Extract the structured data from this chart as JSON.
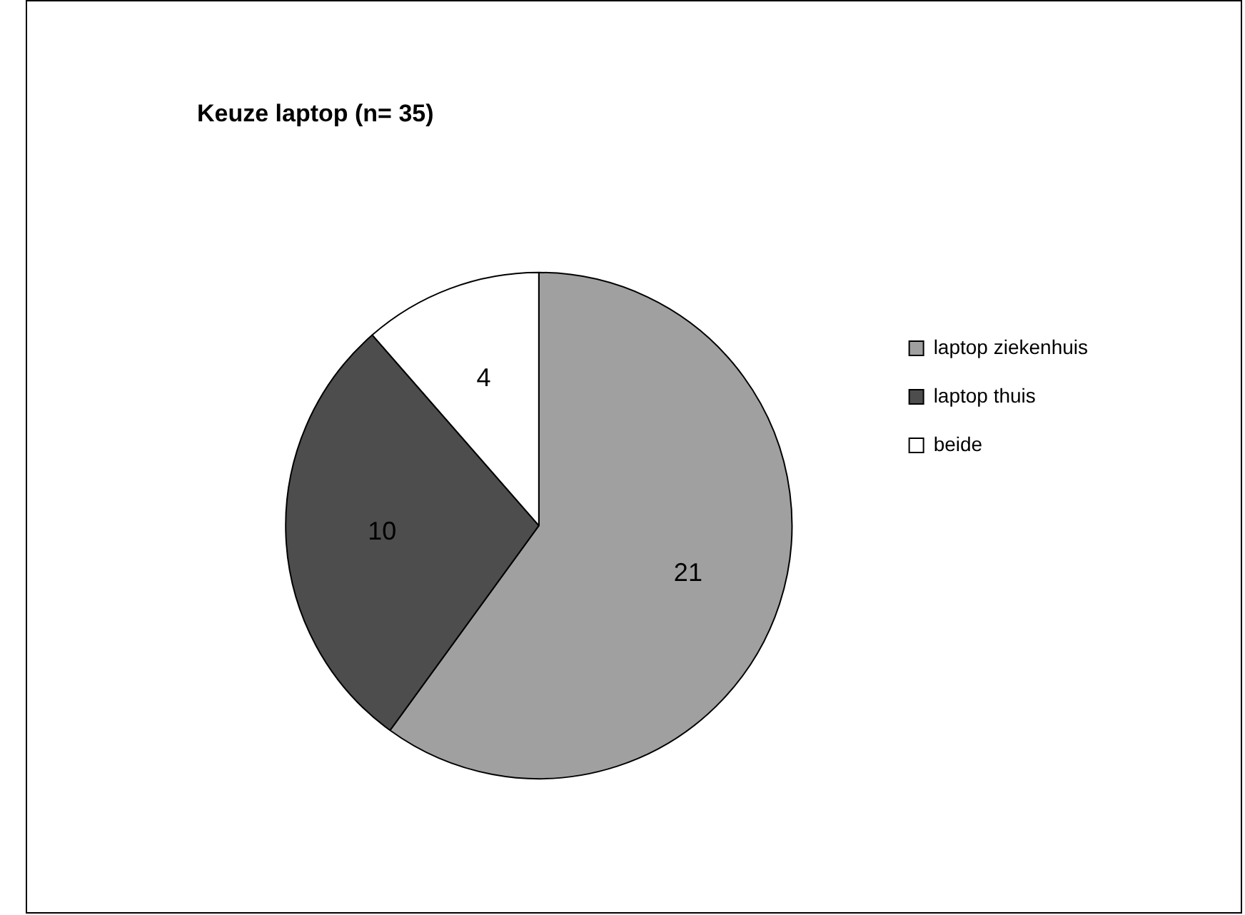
{
  "chart_data": {
    "type": "pie",
    "title": "Keuze laptop (n= 35)",
    "categories": [
      "laptop ziekenhuis",
      "laptop thuis",
      "beide"
    ],
    "values": [
      21,
      10,
      4
    ],
    "colors": [
      "#a0a0a0",
      "#4d4d4d",
      "#ffffff"
    ],
    "data_labels": true,
    "legend": "right"
  }
}
